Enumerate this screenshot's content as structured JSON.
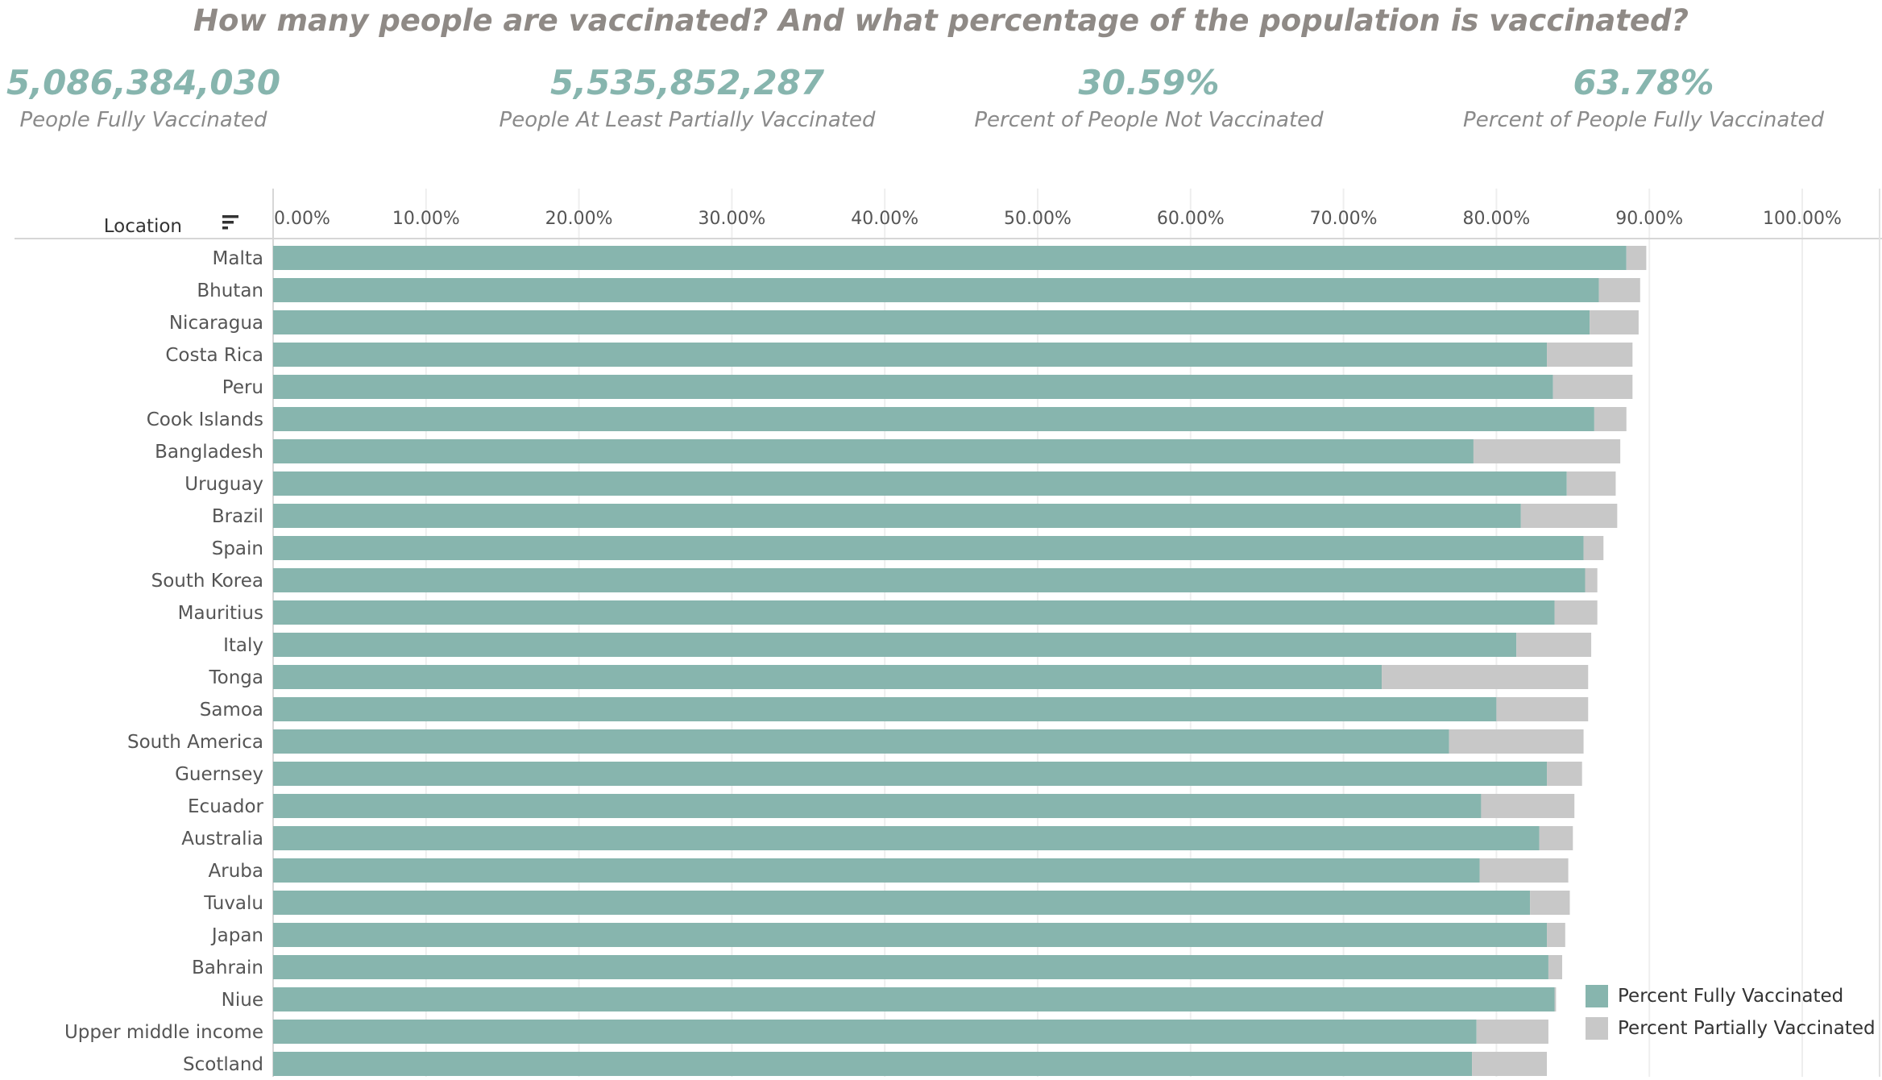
{
  "title": "How many people are vaccinated? And what percentage of the population is vaccinated?",
  "kpis": [
    {
      "value": "5,086,384,030",
      "label": "People Fully Vaccinated"
    },
    {
      "value": "5,535,852,287",
      "label": "People At Least Partially Vaccinated"
    },
    {
      "value": "30.59%",
      "label": "Percent of People Not Vaccinated"
    },
    {
      "value": "63.78%",
      "label": "Percent of People Fully Vaccinated"
    }
  ],
  "colors": {
    "fully": "#87b5ae",
    "partially": "#c8c8c8",
    "title": "#8f8a86",
    "kpi": "#87b5ae"
  },
  "chart_data": {
    "type": "bar",
    "orientation": "horizontal",
    "stacked": true,
    "axis_header": "Location",
    "sort_icon": "sort-descending-icon",
    "categories": [
      "Malta",
      "Bhutan",
      "Nicaragua",
      "Costa Rica",
      "Peru",
      "Cook Islands",
      "Bangladesh",
      "Uruguay",
      "Brazil",
      "Spain",
      "South Korea",
      "Mauritius",
      "Italy",
      "Tonga",
      "Samoa",
      "South America",
      "Guernsey",
      "Ecuador",
      "Australia",
      "Aruba",
      "Tuvalu",
      "Japan",
      "Bahrain",
      "Niue",
      "Upper middle income",
      "Scotland"
    ],
    "series": [
      {
        "name": "Percent Fully Vaccinated",
        "values": [
          88.5,
          86.7,
          86.1,
          83.3,
          83.7,
          86.4,
          78.5,
          84.6,
          81.6,
          85.7,
          85.8,
          83.8,
          81.3,
          72.5,
          80.0,
          76.9,
          83.3,
          79.0,
          82.8,
          78.9,
          82.2,
          83.3,
          83.4,
          83.8,
          78.7,
          78.4
        ]
      },
      {
        "name": "Percent Partially Vaccinated",
        "values": [
          1.3,
          2.7,
          3.2,
          5.6,
          5.2,
          2.1,
          9.6,
          3.2,
          6.3,
          1.3,
          0.8,
          2.8,
          4.9,
          13.5,
          6.0,
          8.8,
          2.3,
          6.1,
          2.2,
          5.8,
          2.6,
          1.2,
          0.9,
          0.1,
          4.7,
          4.9
        ]
      }
    ],
    "x_ticks": [
      "0.00%",
      "10.00%",
      "20.00%",
      "30.00%",
      "40.00%",
      "50.00%",
      "60.00%",
      "70.00%",
      "80.00%",
      "90.00%",
      "100.00%"
    ],
    "xlim": [
      0,
      105
    ],
    "grid": true,
    "legend_position": "bottom-right"
  }
}
